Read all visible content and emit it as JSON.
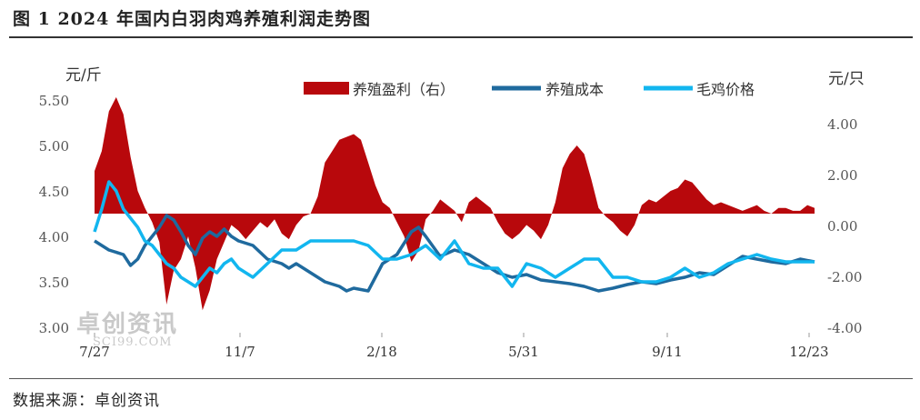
{
  "header": {
    "title": "图 1 2024 年国内白羽肉鸡养殖利润走势图"
  },
  "footer": {
    "source": "数据来源：卓创资讯"
  },
  "watermark": {
    "main": "卓创资讯",
    "sub": "SCI99.COM"
  },
  "colors": {
    "profit": "#b8080c",
    "cost": "#1f6a9e",
    "price": "#12b6ef"
  },
  "chart_data": {
    "type": "area+line",
    "left_unit": "元/斤",
    "right_unit": "元/只",
    "left_ticks": [
      "5.50",
      "5.00",
      "4.50",
      "4.00",
      "3.50",
      "3.00"
    ],
    "right_ticks": [
      "4.00",
      "2.00",
      "0.00",
      "-2.00",
      "-4.00"
    ],
    "x_tick_labels": [
      "7/27",
      "11/7",
      "2/18",
      "5/31",
      "9/11",
      "12/23"
    ],
    "left_axis": {
      "min": 3.0,
      "max": 5.5
    },
    "right_axis": {
      "min": -4.0,
      "max": 4.0
    },
    "x_range": [
      0,
      100
    ],
    "legend_position": "top-right",
    "series": [
      {
        "name": "养殖盈利（右）",
        "axis": "right",
        "type": "area",
        "x": [
          0,
          1,
          2,
          3,
          4,
          5,
          6,
          7,
          8,
          9,
          10,
          11,
          12,
          13,
          14,
          15,
          16,
          17,
          18,
          19,
          20,
          21,
          22,
          23,
          24,
          25,
          26,
          27,
          28,
          29,
          30,
          31,
          32,
          33,
          34,
          35,
          36,
          37,
          38,
          39,
          40,
          41,
          42,
          43,
          44,
          45,
          46,
          47,
          48,
          49,
          50,
          51,
          52,
          53,
          54,
          55,
          56,
          57,
          58,
          59,
          60,
          61,
          62,
          63,
          64,
          65,
          66,
          67,
          68,
          69,
          70,
          71,
          72,
          73,
          74,
          75,
          76,
          77,
          78,
          79,
          80,
          81,
          82,
          83,
          84,
          85,
          86,
          87,
          88,
          89,
          90,
          91,
          92,
          93,
          94,
          95,
          96,
          97,
          98,
          99,
          100
        ],
        "values": [
          1.5,
          2.2,
          3.6,
          4.1,
          3.5,
          2.0,
          0.8,
          0.2,
          -0.3,
          -1.0,
          -3.2,
          -2.0,
          -1.6,
          -0.8,
          -1.9,
          -3.4,
          -2.7,
          -1.6,
          -1.0,
          -0.4,
          -0.6,
          -0.9,
          -0.6,
          -0.3,
          -0.5,
          -0.2,
          -0.7,
          -0.9,
          -0.4,
          -0.1,
          0.0,
          0.6,
          1.8,
          2.2,
          2.6,
          2.7,
          2.8,
          2.6,
          1.8,
          1.0,
          0.4,
          0.2,
          -0.3,
          -0.8,
          -1.7,
          -1.3,
          -0.2,
          0.1,
          0.5,
          0.3,
          0.1,
          -0.3,
          0.4,
          0.6,
          0.4,
          0.2,
          -0.3,
          -0.7,
          -0.9,
          -0.7,
          -0.4,
          -0.6,
          -0.9,
          -0.4,
          0.4,
          1.6,
          2.1,
          2.4,
          2.1,
          1.2,
          0.2,
          -0.1,
          -0.3,
          -0.6,
          -0.8,
          -0.4,
          0.3,
          0.5,
          0.4,
          0.6,
          0.8,
          0.9,
          1.2,
          1.1,
          0.8,
          0.5,
          0.3,
          0.4,
          0.3,
          0.2,
          0.1,
          0.2,
          0.3,
          0.1,
          0.0,
          0.2,
          0.2,
          0.1,
          0.1,
          0.3,
          0.2
        ]
      },
      {
        "name": "养殖成本",
        "axis": "left",
        "type": "line",
        "x": [
          0,
          2,
          4,
          5,
          6,
          7,
          8,
          9,
          10,
          11,
          12,
          13,
          14,
          15,
          16,
          17,
          18,
          19,
          20,
          22,
          24,
          26,
          27,
          28,
          30,
          32,
          34,
          35,
          36,
          38,
          39,
          40,
          42,
          44,
          45,
          46,
          48,
          50,
          52,
          54,
          56,
          58,
          60,
          62,
          64,
          66,
          68,
          70,
          72,
          74,
          76,
          78,
          80,
          82,
          84,
          86,
          88,
          90,
          92,
          94,
          96,
          98,
          100
        ],
        "values": [
          3.95,
          3.85,
          3.8,
          3.68,
          3.75,
          3.9,
          4.0,
          4.1,
          4.23,
          4.18,
          4.05,
          3.9,
          3.8,
          3.98,
          4.05,
          4.0,
          4.08,
          4.0,
          3.95,
          3.9,
          3.75,
          3.7,
          3.65,
          3.7,
          3.6,
          3.5,
          3.45,
          3.4,
          3.43,
          3.4,
          3.55,
          3.7,
          3.8,
          4.05,
          4.1,
          4.0,
          3.78,
          3.85,
          3.8,
          3.7,
          3.6,
          3.55,
          3.58,
          3.52,
          3.5,
          3.48,
          3.45,
          3.4,
          3.43,
          3.47,
          3.5,
          3.48,
          3.52,
          3.55,
          3.6,
          3.58,
          3.68,
          3.78,
          3.75,
          3.72,
          3.7,
          3.75,
          3.72
        ]
      },
      {
        "name": "毛鸡价格",
        "axis": "left",
        "type": "line",
        "x": [
          0,
          1,
          2,
          3,
          4,
          5,
          6,
          7,
          8,
          9,
          10,
          11,
          12,
          13,
          14,
          15,
          16,
          17,
          18,
          19,
          20,
          22,
          24,
          26,
          28,
          30,
          32,
          34,
          36,
          38,
          40,
          42,
          44,
          46,
          48,
          50,
          52,
          54,
          56,
          58,
          60,
          62,
          64,
          66,
          68,
          70,
          72,
          74,
          76,
          78,
          80,
          82,
          84,
          86,
          88,
          90,
          92,
          94,
          96,
          98,
          100
        ],
        "values": [
          4.05,
          4.3,
          4.6,
          4.5,
          4.3,
          4.2,
          4.1,
          3.95,
          3.9,
          3.8,
          3.7,
          3.65,
          3.55,
          3.5,
          3.45,
          3.55,
          3.65,
          3.6,
          3.7,
          3.75,
          3.65,
          3.55,
          3.7,
          3.85,
          3.85,
          3.95,
          3.95,
          3.95,
          3.95,
          3.9,
          3.75,
          3.75,
          3.8,
          3.9,
          3.75,
          3.95,
          3.7,
          3.65,
          3.65,
          3.45,
          3.7,
          3.65,
          3.55,
          3.65,
          3.75,
          3.75,
          3.55,
          3.55,
          3.5,
          3.5,
          3.55,
          3.65,
          3.55,
          3.6,
          3.7,
          3.75,
          3.8,
          3.75,
          3.72,
          3.72,
          3.72
        ]
      }
    ]
  }
}
